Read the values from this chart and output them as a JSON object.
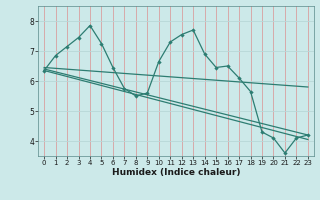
{
  "xlabel": "Humidex (Indice chaleur)",
  "xlim": [
    -0.5,
    23.5
  ],
  "ylim": [
    3.5,
    8.5
  ],
  "xticks": [
    0,
    1,
    2,
    3,
    4,
    5,
    6,
    7,
    8,
    9,
    10,
    11,
    12,
    13,
    14,
    15,
    16,
    17,
    18,
    19,
    20,
    21,
    22,
    23
  ],
  "yticks": [
    4,
    5,
    6,
    7,
    8
  ],
  "bg_color": "#cce9e9",
  "line_color": "#2d7d72",
  "vgrid_color": "#d9a0a0",
  "hgrid_color": "#b8d8d8",
  "series": [
    {
      "x": [
        0,
        1,
        2,
        3,
        4,
        5,
        6,
        7,
        8,
        9,
        10,
        11,
        12,
        13,
        14,
        15,
        16,
        17,
        18,
        19,
        20,
        21,
        22,
        23
      ],
      "y": [
        6.35,
        6.85,
        7.15,
        7.45,
        7.85,
        7.25,
        6.45,
        5.75,
        5.5,
        5.6,
        6.65,
        7.3,
        7.55,
        7.7,
        6.9,
        6.45,
        6.5,
        6.1,
        5.65,
        4.3,
        4.1,
        3.6,
        4.1,
        4.2
      ],
      "has_markers": true
    },
    {
      "x": [
        0,
        23
      ],
      "y": [
        6.45,
        5.8
      ],
      "has_markers": false
    },
    {
      "x": [
        0,
        23
      ],
      "y": [
        6.4,
        4.2
      ],
      "has_markers": false
    },
    {
      "x": [
        0,
        23
      ],
      "y": [
        6.35,
        4.05
      ],
      "has_markers": false
    }
  ]
}
